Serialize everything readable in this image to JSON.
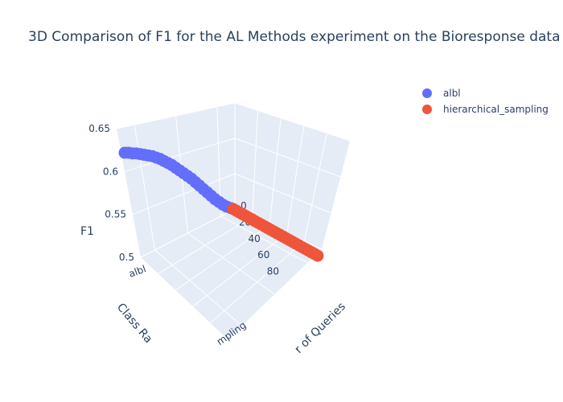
{
  "chart_data": {
    "type": "scatter",
    "title": "3D Comparison of F1 for the AL Methods experiment on the Bioresponse data",
    "zlabel": "F1",
    "xlabel": "Class Ra",
    "ylabel": "r of Queries",
    "zlim": [
      0.5,
      0.65
    ],
    "ylim": [
      0,
      100
    ],
    "z_ticks": [
      "0.5",
      "0.55",
      "0.6",
      "0.65"
    ],
    "y_ticks": [
      "0",
      "20",
      "40",
      "60",
      "80"
    ],
    "x_ticks": [
      "albl",
      "mpling"
    ],
    "legend_position": "top-right",
    "grid": true,
    "colors": {
      "albl": "#636efa",
      "hierarchical_sampling": "#ef553b",
      "panel": "#e5ecf6"
    },
    "series": [
      {
        "name": "albl",
        "x": [
          0,
          0,
          0,
          0,
          0,
          0,
          0,
          0,
          0,
          0,
          0,
          0,
          0,
          0,
          0,
          0,
          0,
          0,
          0,
          0,
          0,
          0,
          0,
          0,
          0,
          0,
          0,
          0
        ],
        "y": [
          0,
          4,
          8,
          11,
          15,
          18,
          22,
          26,
          29,
          33,
          37,
          40,
          44,
          48,
          51,
          55,
          59,
          62,
          66,
          70,
          73,
          77,
          81,
          84,
          88,
          92,
          96,
          100
        ],
        "z": [
          0.648,
          0.648,
          0.647,
          0.647,
          0.646,
          0.645,
          0.644,
          0.643,
          0.641,
          0.639,
          0.636,
          0.633,
          0.63,
          0.626,
          0.622,
          0.618,
          0.614,
          0.61,
          0.605,
          0.6,
          0.595,
          0.59,
          0.585,
          0.58,
          0.576,
          0.572,
          0.569,
          0.567
        ]
      },
      {
        "name": "hierarchical_sampling",
        "x": [
          1,
          1,
          1,
          1,
          1,
          1,
          1,
          1,
          1,
          1,
          1,
          1,
          1,
          1,
          1,
          1,
          1,
          1,
          1,
          1,
          1,
          1,
          1,
          1,
          1,
          1,
          1,
          1
        ],
        "y": [
          0,
          4,
          8,
          11,
          15,
          18,
          22,
          26,
          29,
          33,
          37,
          40,
          44,
          48,
          51,
          55,
          59,
          62,
          66,
          70,
          73,
          77,
          81,
          84,
          88,
          92,
          96,
          100
        ],
        "z": [
          0.498,
          0.503,
          0.508,
          0.514,
          0.52,
          0.526,
          0.531,
          0.536,
          0.54,
          0.545,
          0.548,
          0.551,
          0.554,
          0.557,
          0.559,
          0.561,
          0.563,
          0.564,
          0.565,
          0.566,
          0.567,
          0.568,
          0.568,
          0.569,
          0.569,
          0.57,
          0.57,
          0.57
        ]
      }
    ]
  }
}
